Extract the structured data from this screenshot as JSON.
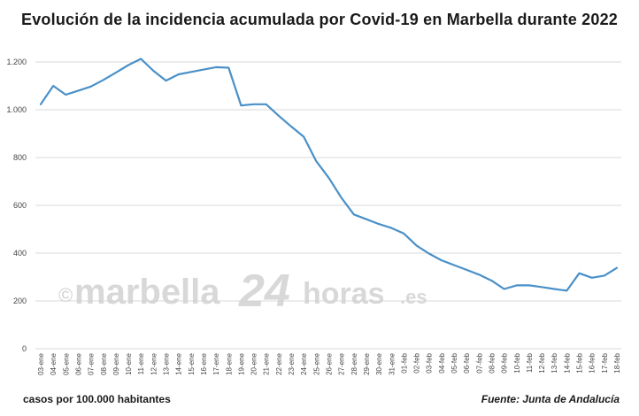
{
  "title": "Evolución de la incidencia acumulada por Covid-19 en Marbella durante 2022",
  "footer": {
    "units": "casos por 100.000 habitantes",
    "source": "Fuente: Junta de Andalucía"
  },
  "watermark": {
    "copyright": "©",
    "brand": "marbella",
    "number": "24",
    "suffix": "horas",
    "tld": ".es"
  },
  "colors": {
    "line": "#4a90c8",
    "grid": "#d9d9d9"
  },
  "chart_data": {
    "type": "line",
    "title": "Evolución de la incidencia acumulada por Covid-19 en Marbella durante 2022",
    "ylabel": "casos por 100.000 habitantes",
    "xlabel": "",
    "ylim": [
      0,
      1200
    ],
    "yticks": [
      0,
      200,
      400,
      600,
      800,
      1000,
      1200
    ],
    "ytick_labels": [
      "0",
      "200",
      "400",
      "600",
      "800",
      "1.000",
      "1.200"
    ],
    "grid": "horizontal",
    "legend": "none",
    "categories": [
      "03-ene",
      "04-ene",
      "05-ene",
      "06-ene",
      "07-ene",
      "08-ene",
      "09-ene",
      "10-ene",
      "11-ene",
      "12-ene",
      "13-ene",
      "14-ene",
      "15-ene",
      "16-ene",
      "17-ene",
      "18-ene",
      "19-ene",
      "20-ene",
      "21-ene",
      "22-ene",
      "23-ene",
      "24-ene",
      "25-ene",
      "26-ene",
      "27-ene",
      "28-ene",
      "29-ene",
      "30-ene",
      "31-ene",
      "01-feb",
      "02-feb",
      "03-feb",
      "04-feb",
      "05-feb",
      "06-feb",
      "07-feb",
      "08-feb",
      "09-feb",
      "10-feb",
      "11-feb",
      "12-feb",
      "13-feb",
      "14-feb",
      "15-feb",
      "16-feb",
      "17-feb",
      "18-feb"
    ],
    "series": [
      {
        "values": [
          1023,
          1100,
          1063,
          1080,
          1097,
          1125,
          1155,
          1187,
          1213,
          1163,
          1122,
          1148,
          1158,
          1168,
          1178,
          1176,
          1018,
          1023,
          1023,
          975,
          930,
          887,
          785,
          715,
          632,
          562,
          542,
          522,
          505,
          482,
          432,
          398,
          370,
          350,
          330,
          310,
          285,
          250,
          265,
          265,
          258,
          250,
          243,
          316,
          297,
          306,
          338
        ]
      }
    ]
  }
}
